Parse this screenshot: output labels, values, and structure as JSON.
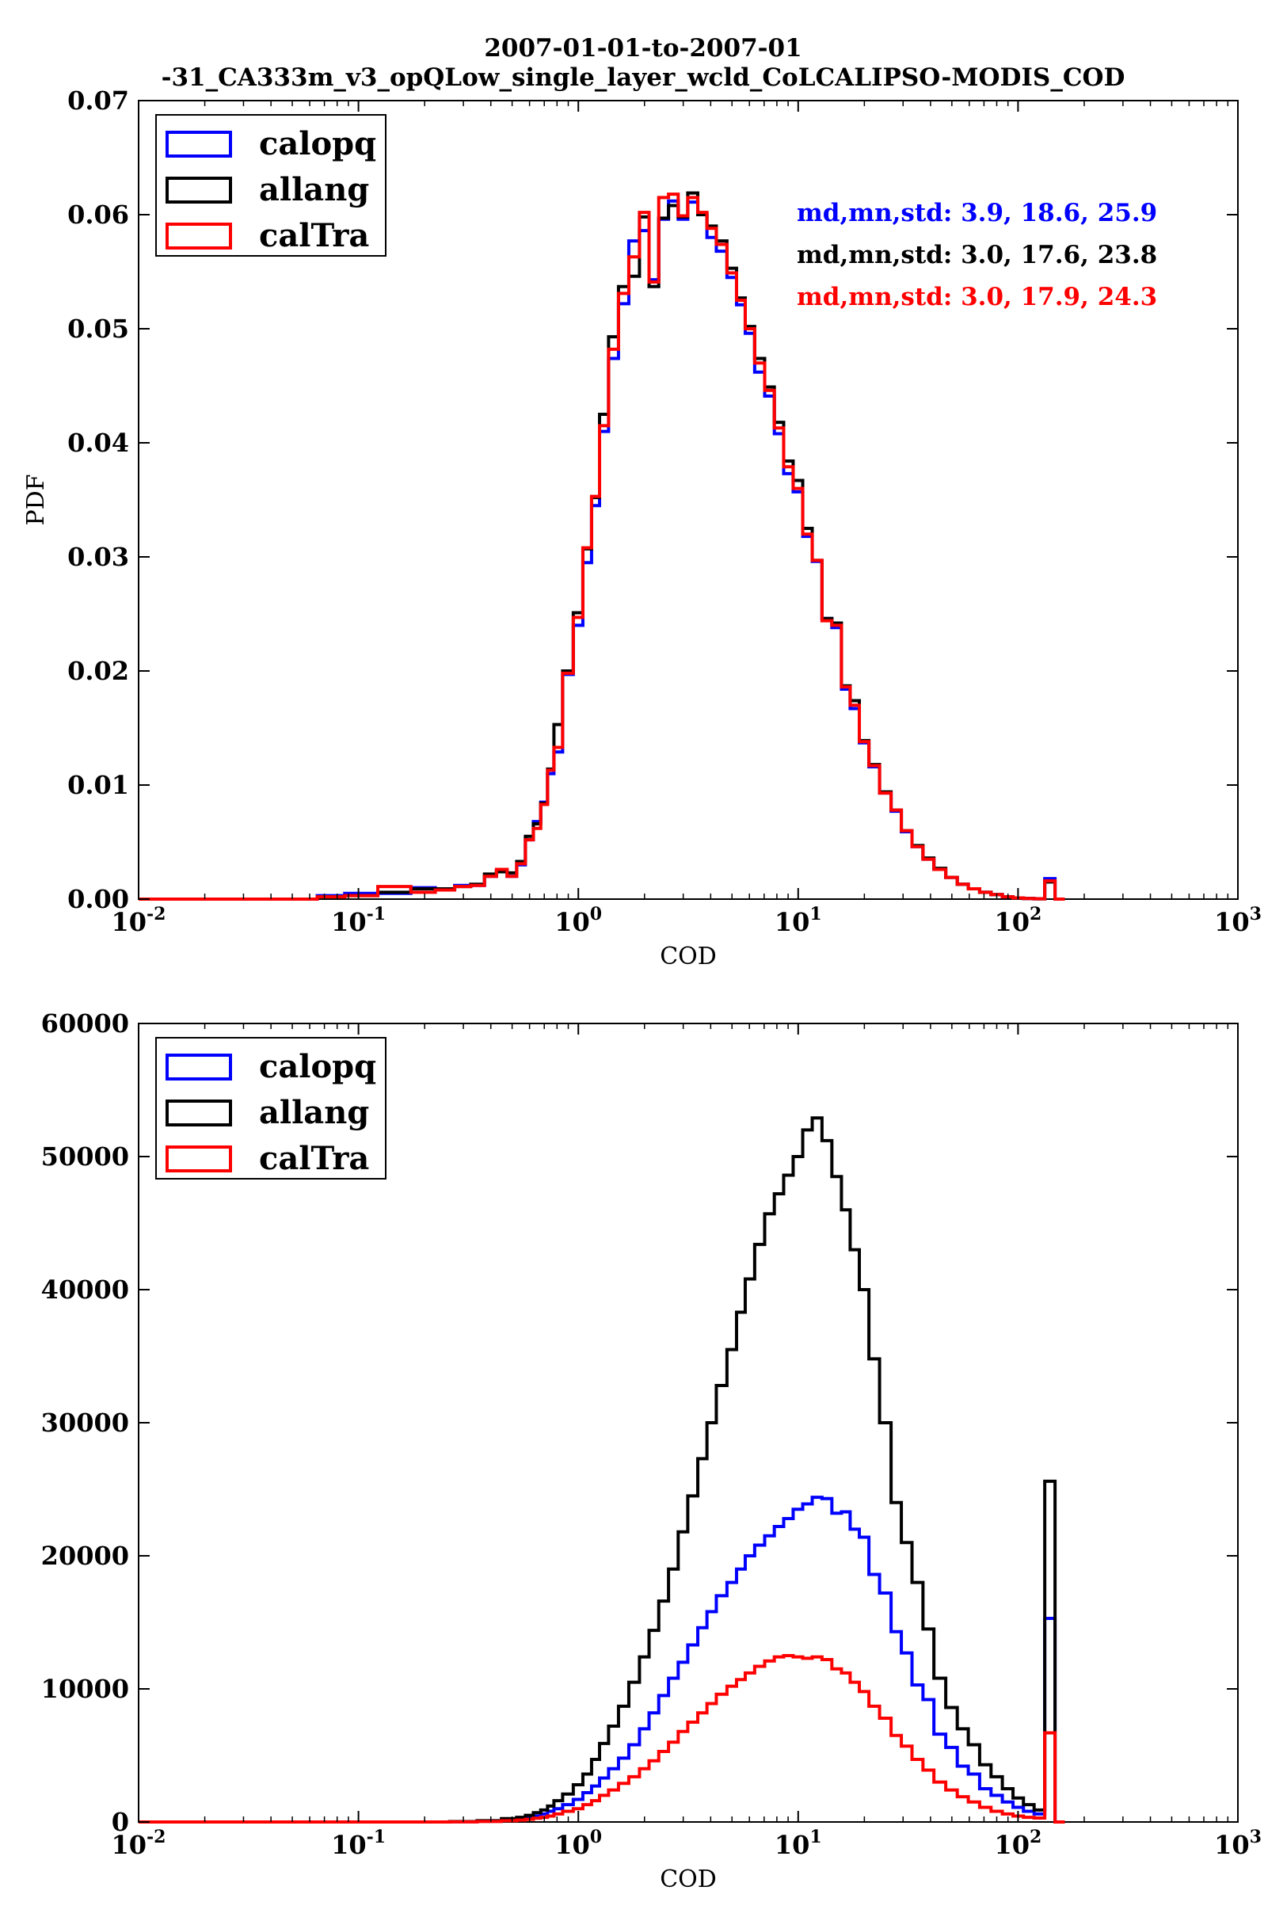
{
  "title": [
    "2007-01-01-to-2007-01",
    "-31_CA333m_v3_opQLow_single_layer_wcld_CoLCALIPSO-MODIS_COD"
  ],
  "colors": {
    "calopq": "#0000ff",
    "allang": "#000000",
    "calTra": "#ff0000"
  },
  "chart_data": [
    {
      "type": "line",
      "xlabel": "COD",
      "ylabel": "PDF",
      "xscale": "log",
      "xlim": [
        0.01,
        1000
      ],
      "ylim": [
        0,
        0.07
      ],
      "xticks": [
        {
          "base": "10",
          "exp": "-2"
        },
        {
          "base": "10",
          "exp": "-1"
        },
        {
          "base": "10",
          "exp": "0"
        },
        {
          "base": "10",
          "exp": "1"
        },
        {
          "base": "10",
          "exp": "2"
        },
        {
          "base": "10",
          "exp": "3"
        }
      ],
      "yticks": [
        0.0,
        0.01,
        0.02,
        0.03,
        0.04,
        0.05,
        0.06,
        0.07
      ],
      "ytick_labels": [
        "0.00",
        "0.01",
        "0.02",
        "0.03",
        "0.04",
        "0.05",
        "0.06",
        "0.07"
      ],
      "legend": {
        "position": "upper-left",
        "entries": [
          "calopq",
          "allang",
          "calTra"
        ]
      },
      "annotations": [
        {
          "text": "md,mn,std: 3.9, 18.6, 25.9",
          "series": "calopq"
        },
        {
          "text": "md,mn,std: 3.0, 17.6, 23.8",
          "series": "allang"
        },
        {
          "text": "md,mn,std: 3.0, 17.9, 24.3",
          "series": "calTra"
        }
      ],
      "x": [
        0.075,
        0.1,
        0.15,
        0.2,
        0.25,
        0.3,
        0.35,
        0.4,
        0.45,
        0.5,
        0.55,
        0.6,
        0.65,
        0.7,
        0.75,
        0.8,
        0.9,
        1.0,
        1.1,
        1.2,
        1.3,
        1.45,
        1.6,
        1.8,
        2.0,
        2.2,
        2.45,
        2.7,
        3.0,
        3.3,
        3.7,
        4.0,
        4.5,
        5.0,
        5.5,
        6.0,
        6.7,
        7.4,
        8.2,
        9.0,
        10.0,
        11.0,
        12.2,
        13.5,
        15.0,
        16.5,
        18.0,
        20.0,
        22.0,
        25.0,
        28.0,
        31.0,
        35.0,
        39.0,
        44.0,
        50.0,
        56.0,
        63.0,
        71.0,
        80.0,
        90.0,
        100.0,
        112.0,
        125.0,
        140.0,
        155.0
      ],
      "series": [
        {
          "name": "calopq",
          "values": [
            0.0003,
            0.0005,
            0.0005,
            0.001,
            0.0008,
            0.0012,
            0.0012,
            0.002,
            0.0025,
            0.002,
            0.003,
            0.0052,
            0.0068,
            0.0085,
            0.011,
            0.0129,
            0.0197,
            0.024,
            0.0295,
            0.0345,
            0.041,
            0.0474,
            0.0522,
            0.0577,
            0.0586,
            0.0543,
            0.0596,
            0.0612,
            0.0596,
            0.0611,
            0.0601,
            0.058,
            0.0568,
            0.0545,
            0.0521,
            0.0496,
            0.0462,
            0.0441,
            0.0408,
            0.0373,
            0.0357,
            0.0318,
            0.0296,
            0.0246,
            0.0238,
            0.0184,
            0.0167,
            0.0137,
            0.0116,
            0.0093,
            0.0077,
            0.0059,
            0.0046,
            0.0035,
            0.0026,
            0.0019,
            0.0013,
            0.0009,
            0.0006,
            0.0004,
            0.0002,
            0.0001,
            5e-05,
            3e-05,
            0.0018,
            0.0
          ]
        },
        {
          "name": "allang",
          "values": [
            0.0002,
            0.0003,
            0.0006,
            0.0009,
            0.0009,
            0.0011,
            0.0013,
            0.0022,
            0.0024,
            0.0023,
            0.0033,
            0.0055,
            0.0066,
            0.0084,
            0.0114,
            0.0153,
            0.02,
            0.0251,
            0.0307,
            0.0352,
            0.0425,
            0.0493,
            0.0537,
            0.0546,
            0.0598,
            0.0537,
            0.0597,
            0.0608,
            0.0598,
            0.0619,
            0.06,
            0.059,
            0.0577,
            0.0553,
            0.0527,
            0.0502,
            0.0474,
            0.0449,
            0.0418,
            0.0384,
            0.0367,
            0.0325,
            0.0297,
            0.0246,
            0.0242,
            0.0187,
            0.0174,
            0.0139,
            0.0118,
            0.0094,
            0.0078,
            0.006,
            0.0047,
            0.0036,
            0.0027,
            0.0019,
            0.0013,
            0.0009,
            0.0006,
            0.0004,
            0.0002,
            0.0001,
            5e-05,
            3e-05,
            0.0015,
            0.0
          ]
        },
        {
          "name": "calTra",
          "values": [
            0.0002,
            0.0003,
            0.0011,
            0.0006,
            0.0008,
            0.0011,
            0.0012,
            0.002,
            0.0026,
            0.002,
            0.0031,
            0.0052,
            0.0062,
            0.0083,
            0.0113,
            0.0133,
            0.0198,
            0.0247,
            0.0308,
            0.0353,
            0.0415,
            0.0482,
            0.0531,
            0.0563,
            0.0602,
            0.0541,
            0.0615,
            0.0618,
            0.0599,
            0.0615,
            0.0602,
            0.0588,
            0.0574,
            0.0549,
            0.0525,
            0.05,
            0.047,
            0.0446,
            0.0413,
            0.0379,
            0.036,
            0.032,
            0.0297,
            0.0244,
            0.024,
            0.0186,
            0.017,
            0.0138,
            0.0117,
            0.0093,
            0.0078,
            0.006,
            0.0046,
            0.0035,
            0.0026,
            0.0019,
            0.0013,
            0.0009,
            0.0006,
            0.0004,
            0.0002,
            0.0001,
            5e-05,
            3e-05,
            0.0016,
            0.0
          ]
        }
      ]
    },
    {
      "type": "line",
      "xlabel": "COD",
      "ylabel": "",
      "xscale": "log",
      "xlim": [
        0.01,
        1000
      ],
      "ylim": [
        0,
        60000
      ],
      "xticks": [
        {
          "base": "10",
          "exp": "-2"
        },
        {
          "base": "10",
          "exp": "-1"
        },
        {
          "base": "10",
          "exp": "0"
        },
        {
          "base": "10",
          "exp": "1"
        },
        {
          "base": "10",
          "exp": "2"
        },
        {
          "base": "10",
          "exp": "3"
        }
      ],
      "yticks": [
        0,
        10000,
        20000,
        30000,
        40000,
        50000,
        60000
      ],
      "ytick_labels": [
        "0",
        "10000",
        "20000",
        "30000",
        "40000",
        "50000",
        "60000"
      ],
      "legend": {
        "position": "upper-left",
        "entries": [
          "calopq",
          "allang",
          "calTra"
        ]
      },
      "x": [
        0.3,
        0.4,
        0.5,
        0.55,
        0.6,
        0.65,
        0.7,
        0.75,
        0.8,
        0.9,
        1.0,
        1.1,
        1.2,
        1.3,
        1.45,
        1.6,
        1.8,
        2.0,
        2.2,
        2.45,
        2.7,
        3.0,
        3.3,
        3.7,
        4.0,
        4.5,
        5.0,
        5.5,
        6.0,
        6.7,
        7.4,
        8.2,
        9.0,
        10.0,
        11.0,
        12.2,
        13.5,
        15.0,
        16.5,
        18.0,
        20.0,
        22.0,
        25.0,
        28.0,
        31.0,
        35.0,
        39.0,
        44.0,
        50.0,
        56.0,
        63.0,
        71.0,
        80.0,
        90.0,
        100.0,
        112.0,
        125.0,
        140.0,
        155.0
      ],
      "series": [
        {
          "name": "calopq",
          "values": [
            20,
            60,
            150,
            200,
            300,
            450,
            600,
            800,
            1000,
            1300,
            1700,
            2200,
            2700,
            3300,
            4000,
            4800,
            5800,
            7000,
            8200,
            9500,
            10800,
            12000,
            13300,
            14600,
            15800,
            17000,
            18000,
            19000,
            20000,
            20800,
            21500,
            22200,
            22800,
            23500,
            23900,
            24400,
            24300,
            23200,
            23300,
            22000,
            21400,
            18600,
            17200,
            14300,
            12700,
            10300,
            9200,
            6600,
            5600,
            4200,
            3600,
            2500,
            2000,
            1500,
            1100,
            800,
            600,
            15300,
            0
          ]
        },
        {
          "name": "allang",
          "values": [
            30,
            100,
            250,
            350,
            500,
            700,
            900,
            1200,
            1600,
            2100,
            2800,
            3600,
            4700,
            5900,
            7200,
            8700,
            10500,
            12400,
            14400,
            16600,
            19000,
            21800,
            24500,
            27300,
            30000,
            32800,
            35500,
            38300,
            40800,
            43400,
            45700,
            47200,
            48600,
            50000,
            52000,
            52900,
            51200,
            48500,
            46000,
            43000,
            40000,
            34800,
            30000,
            24000,
            21000,
            18000,
            14500,
            10800,
            8600,
            7000,
            5800,
            4300,
            3400,
            2500,
            1800,
            1300,
            900,
            25600,
            0
          ]
        },
        {
          "name": "calTra",
          "values": [
            10,
            40,
            100,
            140,
            200,
            280,
            350,
            450,
            600,
            800,
            1000,
            1300,
            1600,
            2000,
            2400,
            2900,
            3400,
            4000,
            4600,
            5300,
            6000,
            6800,
            7500,
            8200,
            8900,
            9600,
            10200,
            10700,
            11200,
            11700,
            12100,
            12400,
            12500,
            12400,
            12300,
            12400,
            12200,
            11500,
            11200,
            10500,
            9800,
            8700,
            7800,
            6500,
            5700,
            4700,
            3900,
            3000,
            2400,
            1900,
            1500,
            1100,
            800,
            600,
            450,
            350,
            300,
            6700,
            0
          ]
        }
      ]
    }
  ]
}
